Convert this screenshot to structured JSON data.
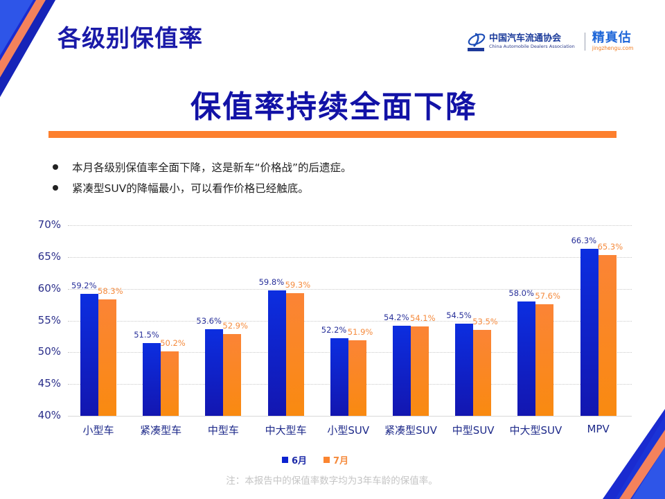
{
  "header": {
    "page_title": "各级别保值率",
    "logos": {
      "cada_cn": "中国汽车流通协会",
      "cada_en": "China Automobile Dealers Association",
      "cada_mark": "CADA",
      "jzg_cn": "精真估",
      "jzg_en": "jingzhengu.com"
    }
  },
  "headline": "保值率持续全面下降",
  "bullets": [
    "本月各级别保值率全面下降，这是新车“价格战”的后遗症。",
    "紧凑型SUV的降幅最小，可以看作价格已经触底。"
  ],
  "colors": {
    "title_blue": "#1a1aa8",
    "series_june": "#0c22d0",
    "series_july": "#fb8530",
    "accent_orange": "#fd7f2d"
  },
  "chart_data": {
    "type": "bar",
    "title": "",
    "xlabel": "",
    "ylabel": "",
    "ylim": [
      40,
      70
    ],
    "yticks": [
      "40%",
      "45%",
      "50%",
      "55%",
      "60%",
      "65%",
      "70%"
    ],
    "grid": true,
    "legend_position": "bottom",
    "categories": [
      "小型车",
      "紧凑型车",
      "中型车",
      "中大型车",
      "小型SUV",
      "紧凑型SUV",
      "中型SUV",
      "中大型SUV",
      "MPV"
    ],
    "series": [
      {
        "name": "6月",
        "values": [
          59.2,
          51.5,
          53.6,
          59.8,
          52.2,
          54.2,
          54.5,
          58.0,
          66.3
        ],
        "labels": [
          "59.2%",
          "51.5%",
          "53.6%",
          "59.8%",
          "52.2%",
          "54.2%",
          "54.5%",
          "58.0%",
          "66.3%"
        ]
      },
      {
        "name": "7月",
        "values": [
          58.3,
          50.2,
          52.9,
          59.3,
          51.9,
          54.1,
          53.5,
          57.6,
          65.3
        ],
        "labels": [
          "58.3%",
          "50.2%",
          "52.9%",
          "59.3%",
          "51.9%",
          "54.1%",
          "53.5%",
          "57.6%",
          "65.3%"
        ]
      }
    ]
  },
  "footnote": "注：本报告中的保值率数字均为3年车龄的保值率。"
}
